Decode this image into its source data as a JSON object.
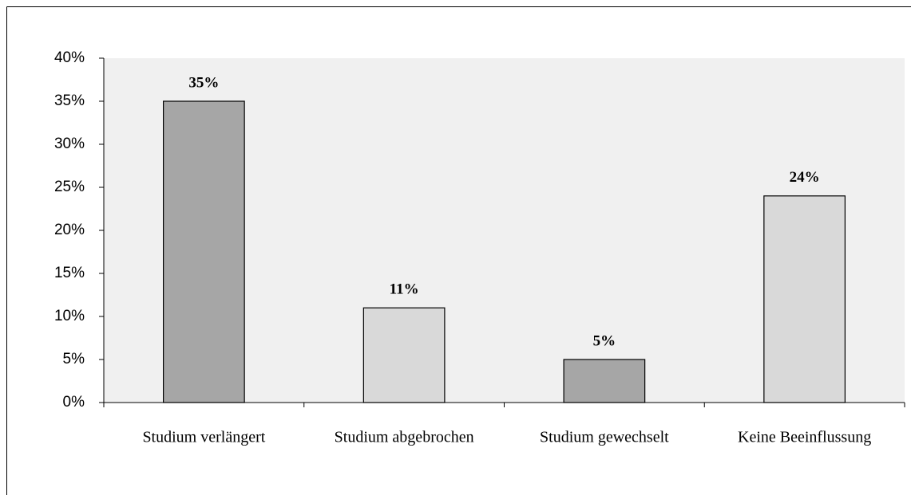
{
  "chart_data": {
    "type": "bar",
    "categories": [
      "Studium verlängert",
      "Studium abgebrochen",
      "Studium gewechselt",
      "Keine Beeinflussung"
    ],
    "values": [
      35,
      11,
      5,
      24
    ],
    "value_labels": [
      "35%",
      "11%",
      "5%",
      "24%"
    ],
    "colors": [
      "#a6a6a6",
      "#d9d9d9",
      "#a6a6a6",
      "#d9d9d9"
    ],
    "plot_background": "#f0f0f0",
    "ylim": [
      0,
      40
    ],
    "yticks": [
      {
        "value": 0,
        "label": "0%"
      },
      {
        "value": 5,
        "label": "5%"
      },
      {
        "value": 10,
        "label": "10%"
      },
      {
        "value": 15,
        "label": "15%"
      },
      {
        "value": 20,
        "label": "20%"
      },
      {
        "value": 25,
        "label": "25%"
      },
      {
        "value": 30,
        "label": "30%"
      },
      {
        "value": 35,
        "label": "35%"
      },
      {
        "value": 40,
        "label": "40%"
      }
    ],
    "grid": false
  }
}
